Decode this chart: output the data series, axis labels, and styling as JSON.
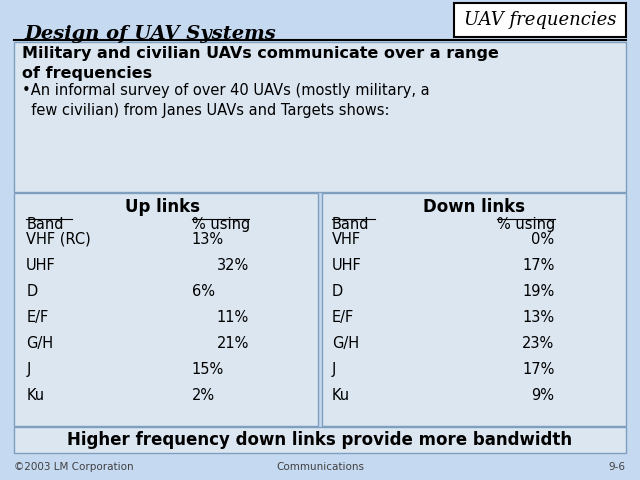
{
  "title_left": "Design of UAV Systems",
  "title_right": "UAV frequencies",
  "slide_bg": "#c5d9f1",
  "box_bg": "#dce6f1",
  "box_edge": "#7f9fbf",
  "header_bold": "Military and civilian UAVs communicate over a range\nof frequencies",
  "bullet_text": "•An informal survey of over 40 UAVs (mostly military, a\n  few civilian) from Janes UAVs and Targets shows:",
  "footer_text": "Higher frequency down links provide more bandwidth",
  "footer_left": "©2003 LM Corporation",
  "footer_center": "Communications",
  "footer_right": "9-6",
  "up_title": "Up links",
  "down_title": "Down links",
  "band_header": "Band",
  "pct_header": "% using",
  "up_bands": [
    "VHF (RC)",
    "UHF",
    "D",
    "E/F",
    "G/H",
    "J",
    "Ku"
  ],
  "up_pcts": [
    "13%",
    "32%",
    "6%",
    "11%",
    "21%",
    "15%",
    "2%"
  ],
  "up_pct_align": [
    "left",
    "right",
    "left",
    "right",
    "right",
    "left",
    "left"
  ],
  "down_bands": [
    "VHF",
    "UHF",
    "D",
    "E/F",
    "G/H",
    "J",
    "Ku"
  ],
  "down_pcts": [
    "0%",
    "17%",
    "19%",
    "13%",
    "23%",
    "17%",
    "9%"
  ]
}
